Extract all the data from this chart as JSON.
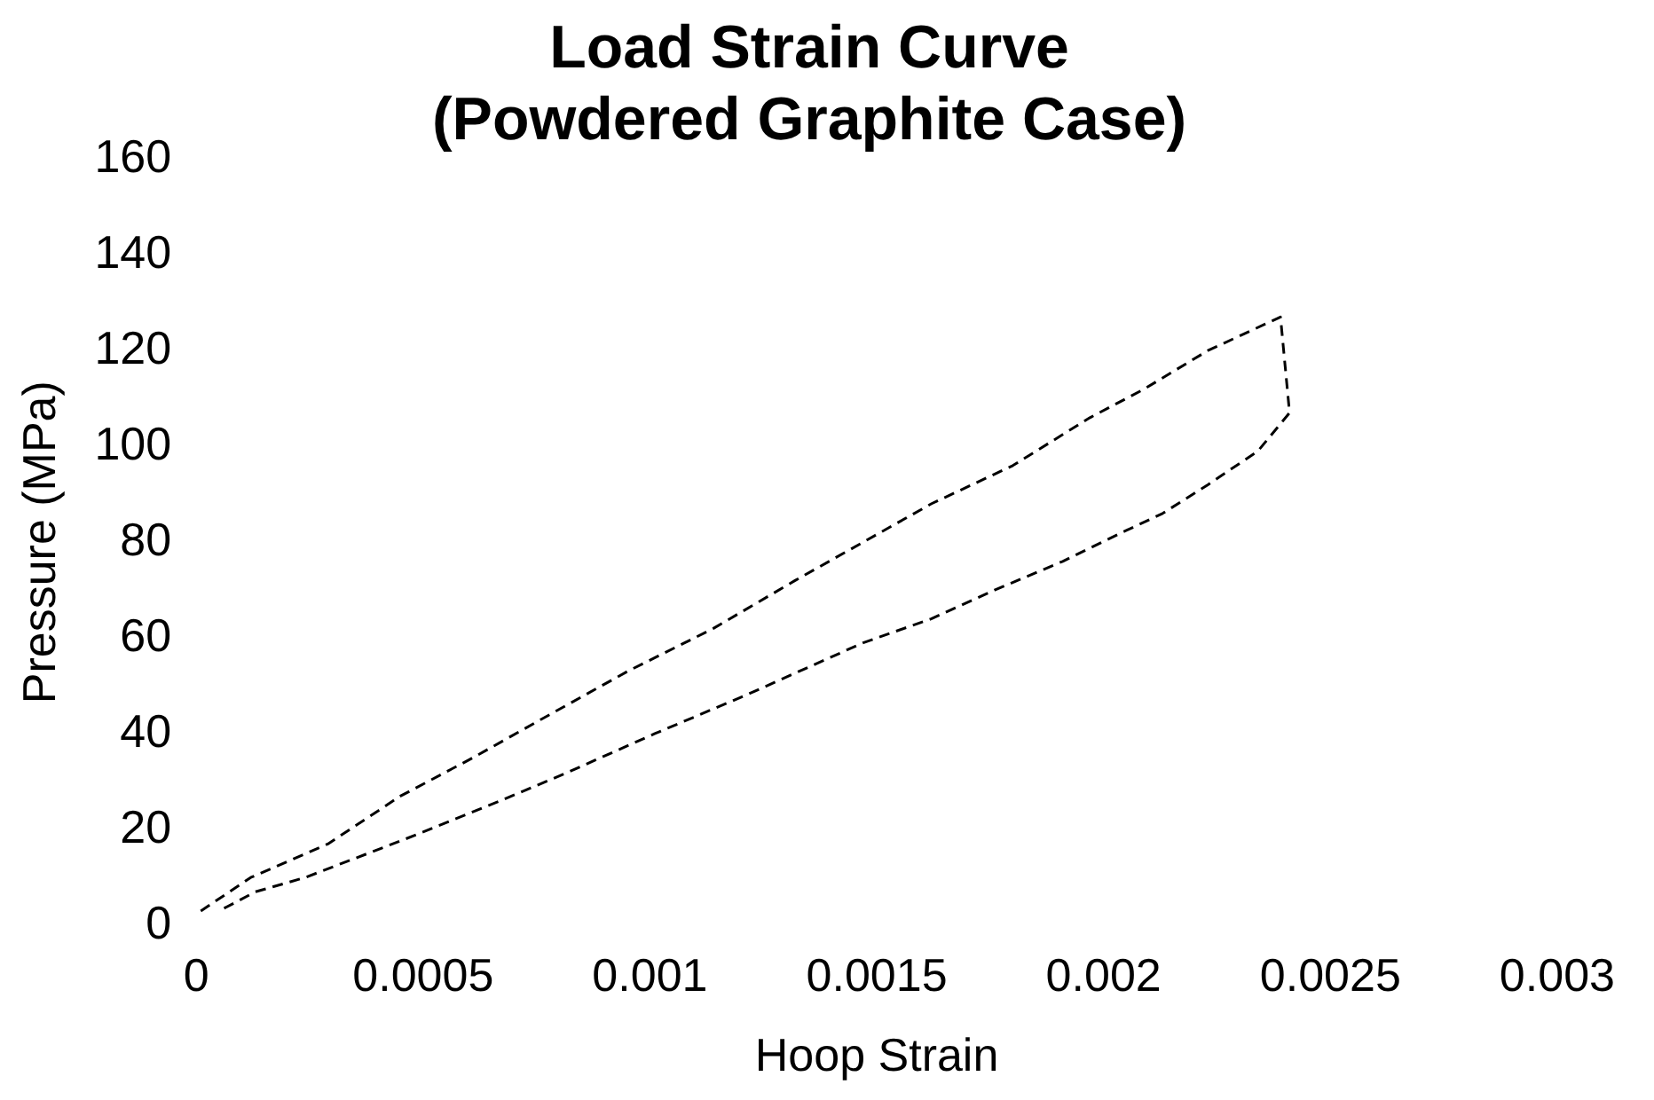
{
  "chart_data": {
    "type": "line",
    "title": "Load Strain Curve\n(Powdered Graphite Case)",
    "xlabel": "Hoop Strain",
    "ylabel": "Pressure (MPa)",
    "series": [
      {
        "color": "#000000",
        "x": [
          1e-05,
          0.00012,
          0.00029,
          0.00045,
          0.00061,
          0.00076,
          0.00095,
          0.00114,
          0.00132,
          0.00162,
          0.0018,
          0.00197,
          0.00209,
          0.00223,
          0.00239,
          0.00241,
          0.00234,
          0.00223,
          0.00213,
          0.00204,
          0.00191,
          0.00176,
          0.00162,
          0.00147,
          0.00121,
          0.00101,
          0.00082,
          0.00067,
          0.00046,
          0.00024,
          0.00013,
          5e-05
        ],
        "values": [
          3,
          10,
          17,
          27,
          35,
          43,
          53,
          62,
          72,
          88,
          96,
          106,
          112,
          120,
          127,
          107,
          99,
          92,
          86,
          82,
          76,
          70,
          64,
          59,
          48,
          40,
          32,
          26,
          18,
          10,
          7,
          3
        ]
      }
    ],
    "xlim": [
      0,
      0.003
    ],
    "xticks": [
      0,
      0.0005,
      0.001,
      0.0015,
      0.002,
      0.0025,
      0.003
    ],
    "ylim": [
      0,
      160
    ],
    "yticks": [
      0,
      20,
      40,
      60,
      80,
      100,
      120,
      140,
      160
    ],
    "grid": false,
    "legend": false,
    "marker": "none",
    "line_style": "dashed"
  }
}
